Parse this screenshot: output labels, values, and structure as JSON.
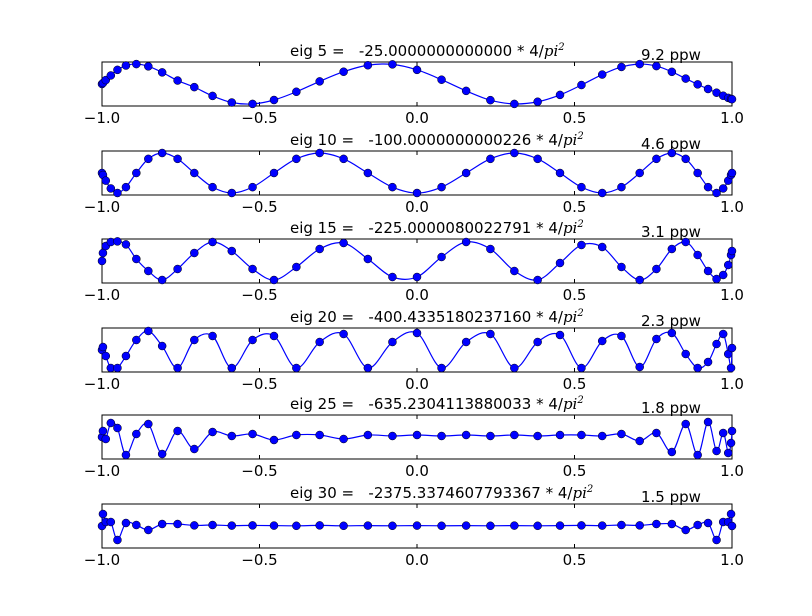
{
  "chart_data": [
    {
      "type": "line",
      "title_prefix": "eig 5 =",
      "eigenvalue": "-25.0000000000000",
      "title_suffix": "* 4/",
      "title_math": "pi",
      "title_sup": "2",
      "ppw": "9.2 ppw",
      "xlim": [
        -1.0,
        1.0
      ],
      "xticks": [
        "−1.0",
        "−0.5",
        "0.0",
        "0.5",
        "1.0"
      ],
      "series": [
        {
          "x": [
            -1.0,
            -0.997,
            -0.988,
            -0.972,
            -0.951,
            -0.924,
            -0.891,
            -0.853,
            -0.809,
            -0.76,
            -0.707,
            -0.649,
            -0.588,
            -0.522,
            -0.454,
            -0.383,
            -0.309,
            -0.233,
            -0.156,
            -0.078,
            0.0,
            0.078,
            0.156,
            0.233,
            0.309,
            0.383,
            0.454,
            0.522,
            0.588,
            0.649,
            0.707,
            0.76,
            0.809,
            0.853,
            0.891,
            0.924,
            0.951,
            0.972,
            0.988,
            0.997,
            1.0
          ],
          "values": [
            0.0,
            0.049,
            0.195,
            0.427,
            0.707,
            0.924,
            0.996,
            0.882,
            0.581,
            0.173,
            -0.156,
            -0.596,
            -0.925,
            -0.996,
            -0.8,
            -0.389,
            0.13,
            0.613,
            0.938,
            0.981,
            0.707,
            0.214,
            -0.344,
            -0.808,
            -0.996,
            -0.888,
            -0.545,
            -0.051,
            0.472,
            0.852,
            0.996,
            0.895,
            0.609,
            0.27,
            -0.018,
            -0.25,
            -0.436,
            -0.587,
            -0.694,
            -0.745,
            -0.76
          ]
        }
      ]
    },
    {
      "type": "line",
      "title_prefix": "eig 10 =",
      "eigenvalue": "-100.0000000000226",
      "title_suffix": "* 4/",
      "title_math": "pi",
      "title_sup": "2",
      "ppw": "4.6 ppw",
      "xlim": [
        -1.0,
        1.0
      ],
      "xticks": [
        "−1.0",
        "−0.5",
        "0.0",
        "0.5",
        "1.0"
      ],
      "series": [
        {
          "x": [
            -1.0,
            -0.997,
            -0.988,
            -0.972,
            -0.951,
            -0.924,
            -0.891,
            -0.853,
            -0.809,
            -0.76,
            -0.707,
            -0.649,
            -0.588,
            -0.522,
            -0.454,
            -0.383,
            -0.309,
            -0.233,
            -0.156,
            -0.078,
            0.0,
            0.078,
            0.156,
            0.233,
            0.309,
            0.383,
            0.454,
            0.522,
            0.588,
            0.649,
            0.707,
            0.76,
            0.809,
            0.853,
            0.891,
            0.924,
            0.951,
            0.972,
            0.988,
            0.997,
            1.0
          ],
          "values": [
            0.0,
            -0.098,
            -0.383,
            -0.773,
            -1.0,
            -0.707,
            0.0,
            0.707,
            1.0,
            0.707,
            0.0,
            -0.707,
            -1.0,
            -0.707,
            0.0,
            0.707,
            1.0,
            0.707,
            0.0,
            -0.707,
            -1.0,
            -0.707,
            0.0,
            0.707,
            1.0,
            0.707,
            0.0,
            -0.707,
            -1.0,
            -0.707,
            0.0,
            0.707,
            1.0,
            0.707,
            0.0,
            -0.707,
            -1.0,
            -0.773,
            -0.383,
            -0.098,
            0.0
          ]
        }
      ]
    },
    {
      "type": "line",
      "title_prefix": "eig 15 =",
      "eigenvalue": "-225.0000080022791",
      "title_suffix": "* 4/",
      "title_math": "pi",
      "title_sup": "2",
      "ppw": "3.1 ppw",
      "xlim": [
        -1.0,
        1.0
      ],
      "xticks": [
        "−1.0",
        "−0.5",
        "0.0",
        "0.5",
        "1.0"
      ],
      "series": [
        {
          "x": [
            -1.0,
            -0.997,
            -0.988,
            -0.972,
            -0.951,
            -0.924,
            -0.891,
            -0.853,
            -0.809,
            -0.76,
            -0.707,
            -0.649,
            -0.588,
            -0.522,
            -0.454,
            -0.383,
            -0.309,
            -0.233,
            -0.156,
            -0.078,
            0.0,
            0.078,
            0.156,
            0.233,
            0.309,
            0.383,
            0.454,
            0.522,
            0.588,
            0.649,
            0.707,
            0.76,
            0.809,
            0.853,
            0.891,
            0.924,
            0.951,
            0.972,
            0.988,
            0.997,
            1.0
          ],
          "values": [
            0.0,
            0.4,
            0.75,
            0.95,
            0.98,
            0.83,
            0.1,
            -0.5,
            -0.95,
            -0.4,
            0.4,
            0.95,
            0.5,
            -0.4,
            -0.95,
            -0.3,
            0.6,
            0.9,
            0.1,
            -0.8,
            -0.8,
            0.2,
            0.95,
            0.6,
            -0.5,
            -0.95,
            -0.1,
            0.8,
            0.7,
            -0.3,
            -0.95,
            -0.4,
            0.6,
            0.95,
            0.3,
            -0.5,
            -0.9,
            -0.7,
            -0.2,
            0.3,
            0.5
          ]
        }
      ]
    },
    {
      "type": "line",
      "title_prefix": "eig 20 =",
      "eigenvalue": "-400.4335180237160",
      "title_suffix": "* 4/",
      "title_math": "pi",
      "title_sup": "2",
      "ppw": "2.3 ppw",
      "xlim": [
        -1.0,
        1.0
      ],
      "xticks": [
        "−1.0",
        "−0.5",
        "0.0",
        "0.5",
        "1.0"
      ],
      "series": [
        {
          "x": [
            -1.0,
            -0.997,
            -0.988,
            -0.972,
            -0.951,
            -0.924,
            -0.891,
            -0.853,
            -0.809,
            -0.76,
            -0.707,
            -0.649,
            -0.588,
            -0.522,
            -0.454,
            -0.383,
            -0.309,
            -0.233,
            -0.156,
            -0.078,
            0.0,
            0.078,
            0.156,
            0.233,
            0.309,
            0.383,
            0.454,
            0.522,
            0.588,
            0.649,
            0.707,
            0.76,
            0.809,
            0.853,
            0.891,
            0.924,
            0.951,
            0.972,
            0.988,
            0.997,
            1.0
          ],
          "values": [
            0.0,
            0.15,
            -0.3,
            -0.9,
            -0.9,
            -0.3,
            0.5,
            0.95,
            0.2,
            -0.9,
            0.5,
            0.7,
            -0.9,
            0.5,
            0.7,
            -0.9,
            0.4,
            0.8,
            -0.9,
            0.4,
            0.85,
            -0.9,
            0.4,
            0.8,
            -0.9,
            0.4,
            0.75,
            -0.9,
            0.45,
            0.7,
            -0.85,
            0.55,
            0.85,
            -0.2,
            -0.9,
            -0.6,
            0.3,
            0.8,
            -0.2,
            -0.9,
            0.1
          ]
        }
      ]
    },
    {
      "type": "line",
      "title_prefix": "eig 25 =",
      "eigenvalue": "-635.2304113880033",
      "title_suffix": "* 4/",
      "title_math": "pi",
      "title_sup": "2",
      "ppw": "1.8 ppw",
      "xlim": [
        -1.0,
        1.0
      ],
      "xticks": [
        "−1.0",
        "−0.5",
        "0.0",
        "0.5",
        "1.0"
      ],
      "series": [
        {
          "x": [
            -1.0,
            -0.997,
            -0.988,
            -0.972,
            -0.951,
            -0.924,
            -0.891,
            -0.853,
            -0.809,
            -0.76,
            -0.707,
            -0.649,
            -0.588,
            -0.522,
            -0.454,
            -0.383,
            -0.309,
            -0.233,
            -0.156,
            -0.078,
            0.0,
            0.078,
            0.156,
            0.233,
            0.309,
            0.383,
            0.454,
            0.522,
            0.588,
            0.649,
            0.707,
            0.76,
            0.809,
            0.853,
            0.891,
            0.924,
            0.951,
            0.972,
            0.988,
            0.997,
            1.0
          ],
          "values": [
            0.0,
            0.3,
            -0.1,
            0.7,
            0.45,
            -0.9,
            0.15,
            0.65,
            -0.85,
            0.3,
            -0.6,
            0.25,
            0.05,
            0.15,
            -0.15,
            0.1,
            0.1,
            -0.1,
            0.1,
            0.05,
            0.1,
            0.05,
            0.1,
            0.05,
            0.1,
            0.05,
            0.1,
            0.1,
            0.05,
            0.15,
            -0.2,
            0.2,
            -0.75,
            0.65,
            -0.9,
            0.75,
            -0.7,
            0.2,
            -0.8,
            -0.3,
            0.3
          ]
        }
      ]
    },
    {
      "type": "line",
      "title_prefix": "eig 30 =",
      "eigenvalue": "-2375.3374607793367",
      "title_suffix": "* 4/",
      "title_math": "pi",
      "title_sup": "2",
      "ppw": "1.5 ppw",
      "xlim": [
        -1.0,
        1.0
      ],
      "xticks": [
        "−1.0",
        "−0.5",
        "0.0",
        "0.5",
        "1.0"
      ],
      "series": [
        {
          "x": [
            -1.0,
            -0.997,
            -0.988,
            -0.972,
            -0.951,
            -0.924,
            -0.891,
            -0.853,
            -0.809,
            -0.76,
            -0.707,
            -0.649,
            -0.588,
            -0.522,
            -0.454,
            -0.383,
            -0.309,
            -0.233,
            -0.156,
            -0.078,
            0.0,
            0.078,
            0.156,
            0.233,
            0.309,
            0.383,
            0.454,
            0.522,
            0.588,
            0.649,
            0.707,
            0.76,
            0.809,
            0.853,
            0.891,
            0.924,
            0.951,
            0.972,
            0.988,
            0.997,
            1.0
          ],
          "values": [
            0.0,
            0.6,
            0.2,
            0.2,
            -0.7,
            0.15,
            0.05,
            -0.2,
            0.1,
            0.1,
            0.03,
            0.05,
            0.02,
            0.03,
            0.02,
            0.01,
            0.03,
            0.01,
            0.02,
            0.01,
            0.02,
            0.01,
            0.02,
            0.01,
            0.02,
            0.01,
            0.02,
            0.03,
            0.02,
            0.05,
            0.03,
            0.1,
            0.1,
            -0.2,
            0.05,
            0.15,
            -0.7,
            0.2,
            0.2,
            0.6,
            0.0
          ]
        }
      ]
    }
  ],
  "colors": {
    "line": "#0000ff",
    "marker": "#0000ff",
    "marker_edge": "#000000",
    "axes": "#000000",
    "background": "#ffffff"
  }
}
